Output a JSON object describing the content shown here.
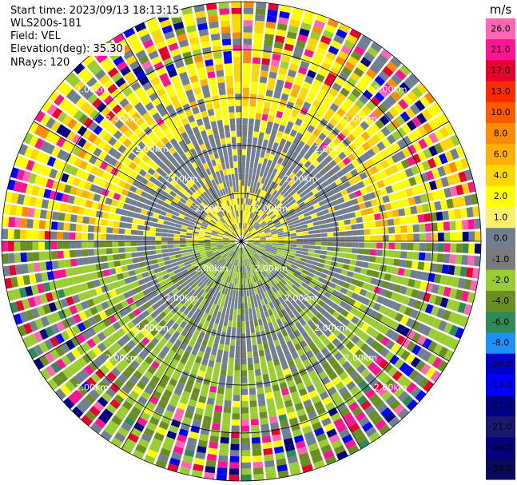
{
  "header": {
    "start_time": "Start time: 2023/09/13 18:13:15",
    "instrument": "WLS200s-181",
    "field": "Field: VEL",
    "elevation": "Elevation(deg): 35.30",
    "nrays": "NRays: 120"
  },
  "ring_label_text": "2.00km",
  "colorbar": {
    "unit": "m/s",
    "ticks": [
      "26.0",
      "21.0",
      "17.0",
      "13.0",
      "10.0",
      "8.0",
      "6.0",
      "4.0",
      "2.0",
      "1.0",
      "0.0",
      "-1.0",
      "-2.0",
      "-4.0",
      "-6.0",
      "-8.0",
      "-10.0",
      "-13.0",
      "-17.0",
      "-21.0",
      "-26.0",
      "-30.0"
    ],
    "colors": [
      "#ff66b4",
      "#ff1493",
      "#e8002e",
      "#ff2a00",
      "#ff5a00",
      "#ff8c00",
      "#ffb000",
      "#ffd700",
      "#ffff00",
      "#fff06a",
      "#708090",
      "#7a7a7a",
      "#9acd32",
      "#6b8e23",
      "#2e8b57",
      "#1e90ff",
      "#0000cd",
      "#0000ff",
      "#00008b",
      "#191970",
      "#000080",
      "#0a0a5a"
    ]
  },
  "chart_data": {
    "type": "ppi",
    "field": "VEL",
    "units": "m/s",
    "rays": 120,
    "elevation_deg": 35.3,
    "range_rings": [
      "2.00km",
      "2.00km",
      "2.00km",
      "2.00km",
      "2.00km",
      "2.00km"
    ],
    "value_ticks": [
      26.0,
      21.0,
      17.0,
      13.0,
      10.0,
      8.0,
      6.0,
      4.0,
      2.0,
      1.0,
      0.0,
      -1.0,
      -2.0,
      -4.0,
      -6.0,
      -8.0,
      -10.0,
      -13.0,
      -17.0,
      -21.0,
      -26.0,
      -30.0
    ]
  }
}
